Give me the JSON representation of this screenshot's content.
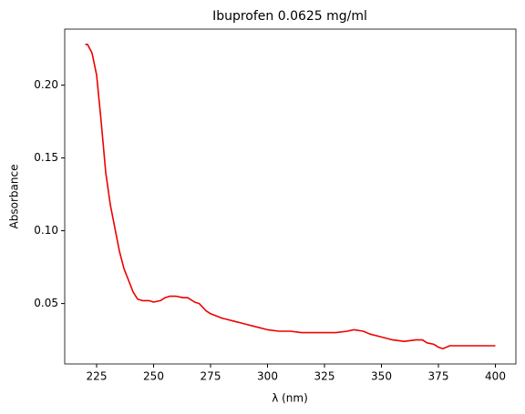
{
  "chart_data": {
    "type": "line",
    "title": "Ibuprofen 0.0625 mg/ml",
    "x_label": "λ (nm)",
    "y_label": "Absorbance",
    "x": [
      220,
      221,
      223,
      225,
      227,
      229,
      231,
      233,
      235,
      237,
      239,
      241,
      243,
      245,
      248,
      250,
      253,
      255,
      257,
      260,
      263,
      265,
      268,
      270,
      273,
      275,
      280,
      285,
      290,
      295,
      300,
      305,
      310,
      315,
      320,
      325,
      330,
      335,
      338,
      342,
      345,
      350,
      355,
      360,
      365,
      368,
      370,
      373,
      375,
      377,
      380,
      385,
      390,
      395,
      400
    ],
    "series": [
      {
        "name": "Absorbance",
        "color": "#ee0000",
        "values": [
          0.228,
          0.228,
          0.222,
          0.207,
          0.175,
          0.14,
          0.118,
          0.102,
          0.086,
          0.074,
          0.066,
          0.058,
          0.053,
          0.052,
          0.052,
          0.051,
          0.052,
          0.054,
          0.055,
          0.055,
          0.054,
          0.054,
          0.051,
          0.05,
          0.045,
          0.043,
          0.04,
          0.038,
          0.036,
          0.034,
          0.032,
          0.031,
          0.031,
          0.03,
          0.03,
          0.03,
          0.03,
          0.031,
          0.032,
          0.031,
          0.029,
          0.027,
          0.025,
          0.024,
          0.025,
          0.025,
          0.023,
          0.022,
          0.02,
          0.019,
          0.021,
          0.021,
          0.021,
          0.021,
          0.021
        ]
      }
    ],
    "xlim": [
      211,
      409
    ],
    "xticks": [
      225,
      250,
      275,
      300,
      325,
      350,
      375,
      400
    ],
    "ylim": [
      0.0085,
      0.2385
    ],
    "yticks": [
      {
        "value": 0.05,
        "label": "0.05"
      },
      {
        "value": 0.1,
        "label": "0.10"
      },
      {
        "value": 0.15,
        "label": "0.15"
      },
      {
        "value": 0.2,
        "label": "0.20"
      }
    ],
    "grid": false
  }
}
